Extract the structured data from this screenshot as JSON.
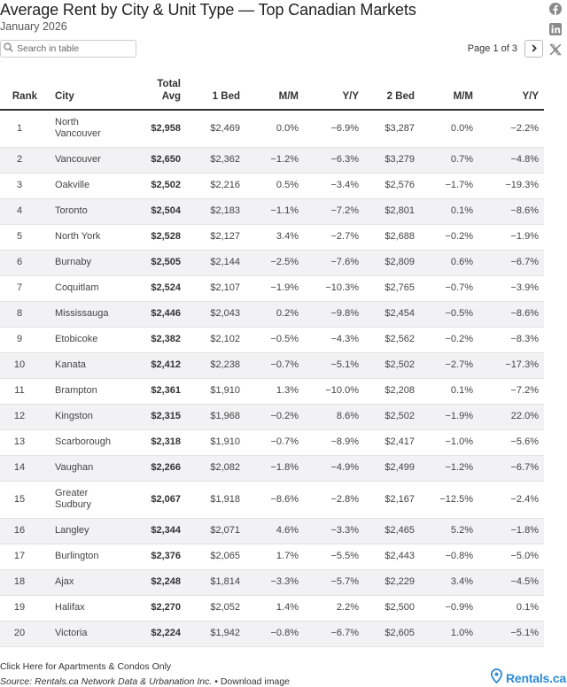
{
  "header": {
    "title": "Average Rent by City & Unit Type — Top Canadian Markets",
    "subtitle": "January 2026"
  },
  "social": {
    "icons": [
      "facebook-icon",
      "linkedin-icon",
      "x-icon"
    ]
  },
  "search": {
    "placeholder": "Search in table"
  },
  "pagination": {
    "label": "Page 1 of 3",
    "next_icon": "chevron-right-icon"
  },
  "table": {
    "columns": {
      "rank": "Rank",
      "city": "City",
      "total_line1": "Total",
      "total_line2": "Avg",
      "bed1": "1 Bed",
      "mm1": "M/M",
      "yy1": "Y/Y",
      "bed2": "2 Bed",
      "mm2": "M/M",
      "yy2": "Y/Y"
    },
    "rows": [
      {
        "rank": "1",
        "city": "North Vancouver",
        "total": "$2,958",
        "bed1": "$2,469",
        "mm1": "0.0%",
        "yy1": "−6.9%",
        "bed2": "$3,287",
        "mm2": "0.0%",
        "yy2": "−2.2%"
      },
      {
        "rank": "2",
        "city": "Vancouver",
        "total": "$2,650",
        "bed1": "$2,362",
        "mm1": "−1.2%",
        "yy1": "−6.3%",
        "bed2": "$3,279",
        "mm2": "0.7%",
        "yy2": "−4.8%"
      },
      {
        "rank": "3",
        "city": "Oakville",
        "total": "$2,502",
        "bed1": "$2,216",
        "mm1": "0.5%",
        "yy1": "−3.4%",
        "bed2": "$2,576",
        "mm2": "−1.7%",
        "yy2": "−19.3%"
      },
      {
        "rank": "4",
        "city": "Toronto",
        "total": "$2,504",
        "bed1": "$2,183",
        "mm1": "−1.1%",
        "yy1": "−7.2%",
        "bed2": "$2,801",
        "mm2": "0.1%",
        "yy2": "−8.6%"
      },
      {
        "rank": "5",
        "city": "North York",
        "total": "$2,528",
        "bed1": "$2,127",
        "mm1": "3.4%",
        "yy1": "−2.7%",
        "bed2": "$2,688",
        "mm2": "−0.2%",
        "yy2": "−1.9%"
      },
      {
        "rank": "6",
        "city": "Burnaby",
        "total": "$2,505",
        "bed1": "$2,144",
        "mm1": "−2.5%",
        "yy1": "−7.6%",
        "bed2": "$2,809",
        "mm2": "0.6%",
        "yy2": "−6.7%"
      },
      {
        "rank": "7",
        "city": "Coquitlam",
        "total": "$2,524",
        "bed1": "$2,107",
        "mm1": "−1.9%",
        "yy1": "−10.3%",
        "bed2": "$2,765",
        "mm2": "−0.7%",
        "yy2": "−3.9%"
      },
      {
        "rank": "8",
        "city": "Mississauga",
        "total": "$2,446",
        "bed1": "$2,043",
        "mm1": "0.2%",
        "yy1": "−9.8%",
        "bed2": "$2,454",
        "mm2": "−0.5%",
        "yy2": "−8.6%"
      },
      {
        "rank": "9",
        "city": "Etobicoke",
        "total": "$2,382",
        "bed1": "$2,102",
        "mm1": "−0.5%",
        "yy1": "−4.3%",
        "bed2": "$2,562",
        "mm2": "−0.2%",
        "yy2": "−8.3%"
      },
      {
        "rank": "10",
        "city": "Kanata",
        "total": "$2,412",
        "bed1": "$2,238",
        "mm1": "−0.7%",
        "yy1": "−5.1%",
        "bed2": "$2,502",
        "mm2": "−2.7%",
        "yy2": "−17.3%"
      },
      {
        "rank": "11",
        "city": "Brampton",
        "total": "$2,361",
        "bed1": "$1,910",
        "mm1": "1.3%",
        "yy1": "−10.0%",
        "bed2": "$2,208",
        "mm2": "0.1%",
        "yy2": "−7.2%"
      },
      {
        "rank": "12",
        "city": "Kingston",
        "total": "$2,315",
        "bed1": "$1,968",
        "mm1": "−0.2%",
        "yy1": "8.6%",
        "bed2": "$2,502",
        "mm2": "−1.9%",
        "yy2": "22.0%"
      },
      {
        "rank": "13",
        "city": "Scarborough",
        "total": "$2,318",
        "bed1": "$1,910",
        "mm1": "−0.7%",
        "yy1": "−8.9%",
        "bed2": "$2,417",
        "mm2": "−1.0%",
        "yy2": "−5.6%"
      },
      {
        "rank": "14",
        "city": "Vaughan",
        "total": "$2,266",
        "bed1": "$2,082",
        "mm1": "−1.8%",
        "yy1": "−4.9%",
        "bed2": "$2,499",
        "mm2": "−1.2%",
        "yy2": "−6.7%"
      },
      {
        "rank": "15",
        "city": "Greater Sudbury",
        "total": "$2,067",
        "bed1": "$1,918",
        "mm1": "−8.6%",
        "yy1": "−2.8%",
        "bed2": "$2,167",
        "mm2": "−12.5%",
        "yy2": "−2.4%"
      },
      {
        "rank": "16",
        "city": "Langley",
        "total": "$2,344",
        "bed1": "$2,071",
        "mm1": "4.6%",
        "yy1": "−3.3%",
        "bed2": "$2,465",
        "mm2": "5.2%",
        "yy2": "−1.8%"
      },
      {
        "rank": "17",
        "city": "Burlington",
        "total": "$2,376",
        "bed1": "$2,065",
        "mm1": "1.7%",
        "yy1": "−5.5%",
        "bed2": "$2,443",
        "mm2": "−0.8%",
        "yy2": "−5.0%"
      },
      {
        "rank": "18",
        "city": "Ajax",
        "total": "$2,248",
        "bed1": "$1,814",
        "mm1": "−3.3%",
        "yy1": "−5.7%",
        "bed2": "$2,229",
        "mm2": "3.4%",
        "yy2": "−4.5%"
      },
      {
        "rank": "19",
        "city": "Halifax",
        "total": "$2,270",
        "bed1": "$2,052",
        "mm1": "1.4%",
        "yy1": "2.2%",
        "bed2": "$2,500",
        "mm2": "−0.9%",
        "yy2": "0.1%"
      },
      {
        "rank": "20",
        "city": "Victoria",
        "total": "$2,224",
        "bed1": "$1,942",
        "mm1": "−0.8%",
        "yy1": "−6.7%",
        "bed2": "$2,605",
        "mm2": "1.0%",
        "yy2": "−5.1%"
      }
    ]
  },
  "footer": {
    "link_label": "Click Here for Apartments & Condos Only",
    "source_prefix": "Source: ",
    "source_text": "Rentals.ca Network Data & Urbanation Inc.",
    "separator": " • ",
    "download_label": "Download image",
    "brand": "Rentals.ca"
  },
  "colors": {
    "brand_blue": "#2e8bd6",
    "row_stripe": "#f2f2f4"
  }
}
